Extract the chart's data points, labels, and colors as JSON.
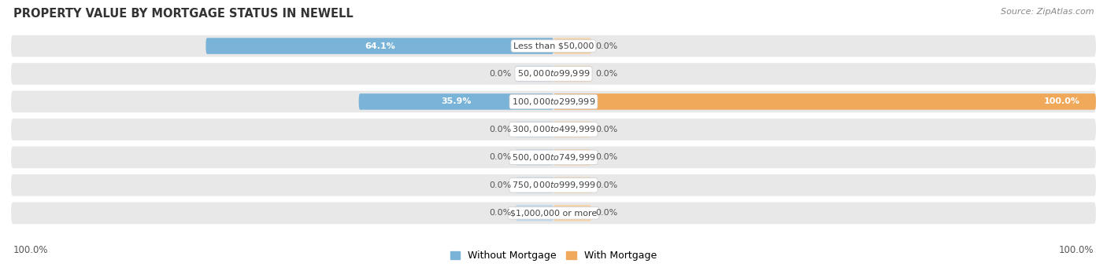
{
  "title": "PROPERTY VALUE BY MORTGAGE STATUS IN NEWELL",
  "source": "Source: ZipAtlas.com",
  "categories": [
    "Less than $50,000",
    "$50,000 to $99,999",
    "$100,000 to $299,999",
    "$300,000 to $499,999",
    "$500,000 to $749,999",
    "$750,000 to $999,999",
    "$1,000,000 or more"
  ],
  "without_mortgage": [
    64.1,
    0.0,
    35.9,
    0.0,
    0.0,
    0.0,
    0.0
  ],
  "with_mortgage": [
    0.0,
    0.0,
    100.0,
    0.0,
    0.0,
    0.0,
    0.0
  ],
  "color_without": "#7ab3d8",
  "color_with": "#f0a85a",
  "color_without_faint": "#c2d8eb",
  "color_with_faint": "#f5d3a8",
  "row_bg_color": "#e8e8e8",
  "label_fontsize": 8.0,
  "title_fontsize": 10.5,
  "source_fontsize": 8.0,
  "axis_fontsize": 8.5,
  "legend_fontsize": 9.0,
  "faint_bar_width": 7.0,
  "max_val": 100.0
}
